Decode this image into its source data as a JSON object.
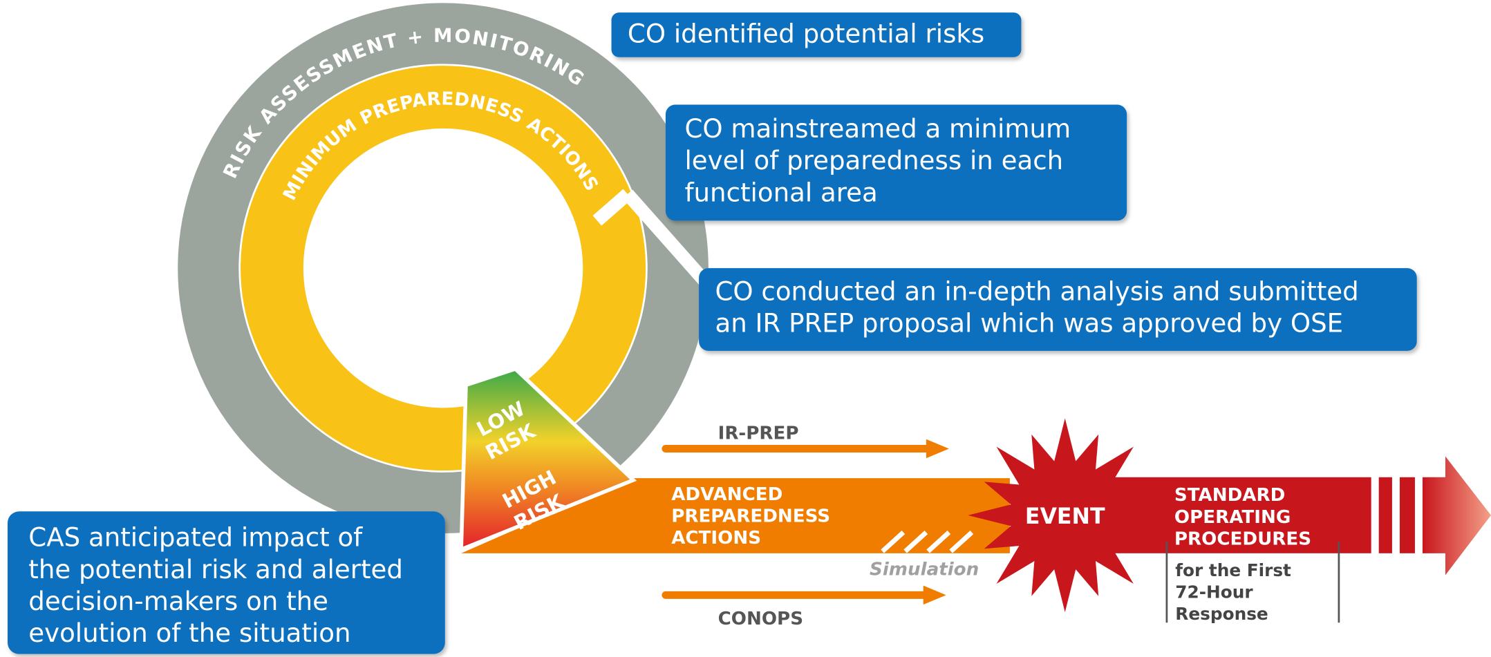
{
  "ring": {
    "outer_label": "RISK ASSESSMENT + MONITORING",
    "inner_label": "MINIMUM PREPAREDNESS ACTIONS"
  },
  "risk_wedge": {
    "low": [
      "LOW",
      "RISK"
    ],
    "high": [
      "HIGH",
      "RISK"
    ]
  },
  "callouts": [
    {
      "lines": [
        "CO identified potential risks"
      ]
    },
    {
      "lines": [
        "CO mainstreamed a minimum",
        "level of preparedness in each",
        "functional area"
      ]
    },
    {
      "lines": [
        "CO conducted an in-depth analysis and submitted",
        "an IR PREP proposal which was approved by OSE"
      ]
    },
    {
      "lines": [
        "CAS anticipated impact of",
        "the potential risk and alerted",
        "decision-makers on the",
        "evolution of the situation"
      ]
    }
  ],
  "flow": {
    "ir_prep": "IR-PREP",
    "advanced": [
      "ADVANCED",
      "PREPAREDNESS",
      "ACTIONS"
    ],
    "simulation": "Simulation",
    "conops": "CONOPS",
    "event": "EVENT",
    "sop": [
      "STANDARD",
      "OPERATING",
      "PROCEDURES"
    ],
    "sop_note": [
      "for the First",
      "72-Hour",
      "Response"
    ]
  }
}
